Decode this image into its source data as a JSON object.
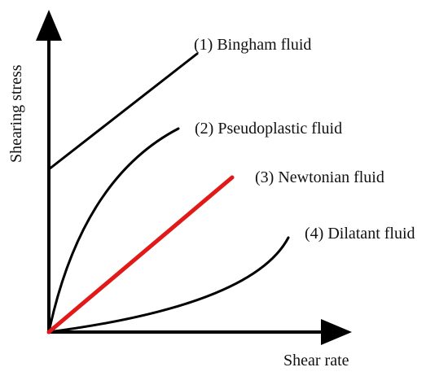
{
  "diagram": {
    "axes": {
      "y_label": "Shearing stress",
      "x_label": "Shear rate",
      "color": "#000000"
    },
    "curves": [
      {
        "label": "(1) Bingham fluid",
        "color": "#000000",
        "shape": "straight line with nonzero intercept"
      },
      {
        "label": "(2) Pseudoplastic fluid",
        "color": "#000000",
        "shape": "concave-down curve through origin"
      },
      {
        "label": "(3) Newtonian fluid",
        "color": "#e11919",
        "shape": "straight line through origin"
      },
      {
        "label": "(4) Dilatant fluid",
        "color": "#000000",
        "shape": "concave-up curve through origin"
      }
    ]
  }
}
